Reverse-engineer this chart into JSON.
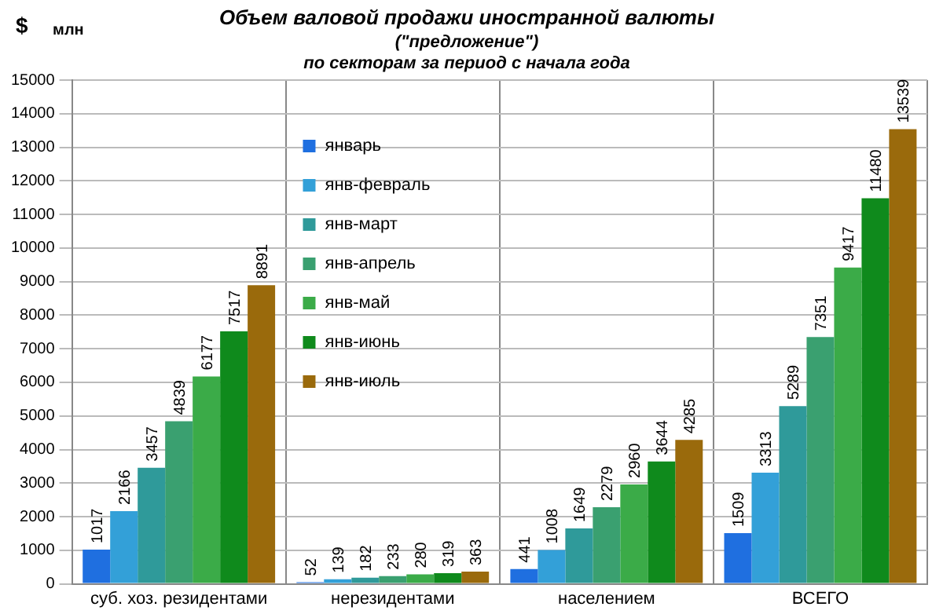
{
  "chart_data": {
    "type": "bar",
    "title": "Объем валовой продажи иностранной валюты",
    "subtitle": "(\"предложение\")\nпо секторам за период с начала года",
    "ylabel": "$ млн",
    "categories": [
      "суб. хоз. резидентами",
      "нерезидентами",
      "населением",
      "ВСЕГО"
    ],
    "series": [
      {
        "name": "январь",
        "color": "#1f6fe0",
        "values": [
          1017,
          52,
          441,
          1509
        ]
      },
      {
        "name": "янв-февраль",
        "color": "#33a0d8",
        "values": [
          2166,
          139,
          1008,
          3313
        ]
      },
      {
        "name": "янв-март",
        "color": "#2f9a9a",
        "values": [
          3457,
          182,
          1649,
          5289
        ]
      },
      {
        "name": "янв-апрель",
        "color": "#3aa070",
        "values": [
          4839,
          233,
          2279,
          7351
        ]
      },
      {
        "name": "янв-май",
        "color": "#3bab48",
        "values": [
          6177,
          280,
          2960,
          9417
        ]
      },
      {
        "name": "янв-июнь",
        "color": "#0f8a1c",
        "values": [
          7517,
          319,
          3644,
          11480
        ]
      },
      {
        "name": "янв-июль",
        "color": "#9a6a0c",
        "values": [
          8891,
          363,
          4285,
          13539
        ]
      }
    ],
    "ylim": [
      0,
      15000
    ],
    "yticks": [
      0,
      1000,
      2000,
      3000,
      4000,
      5000,
      6000,
      7000,
      8000,
      9000,
      10000,
      11000,
      12000,
      13000,
      14000,
      15000
    ],
    "grid": true,
    "legend": "top left",
    "data_labels": true
  }
}
